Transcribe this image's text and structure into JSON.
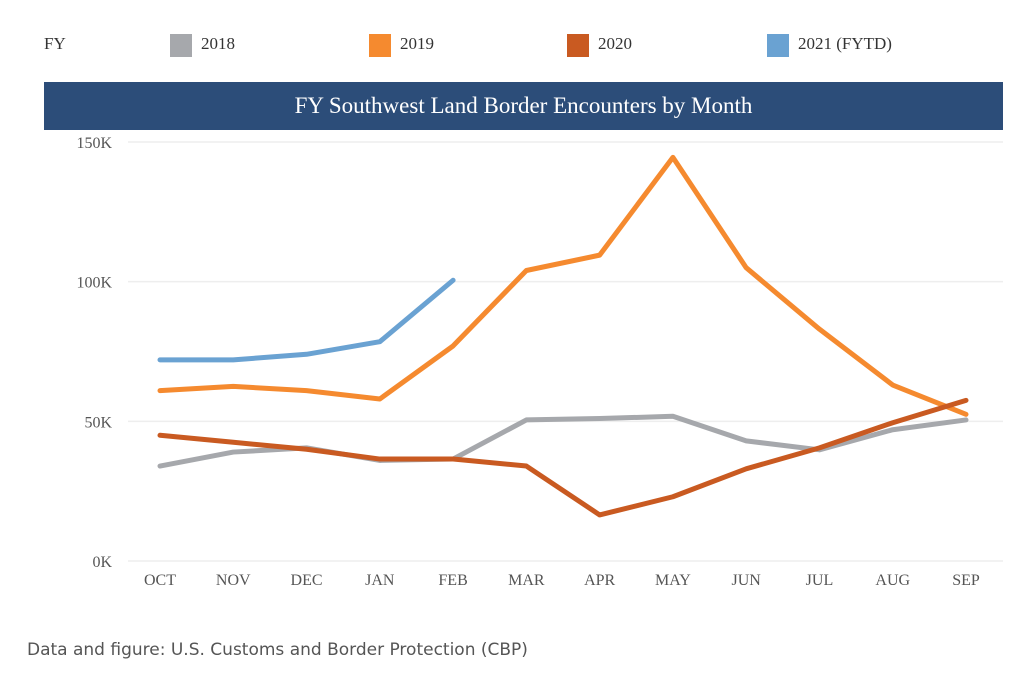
{
  "legend": {
    "title": "FY",
    "items": [
      {
        "label": "2018",
        "color": "#a6a8ac"
      },
      {
        "label": "2019",
        "color": "#f58a2f"
      },
      {
        "label": "2020",
        "color": "#c95a21"
      },
      {
        "label": "2021 (FYTD)",
        "color": "#6aa2d2"
      }
    ]
  },
  "source": "Data and figure: U.S. Customs and Border Protection (CBP)",
  "chart_data": {
    "type": "line",
    "title": "FY Southwest Land Border Encounters by Month",
    "title_bar_color": "#2c4d79",
    "xlabel": "",
    "ylabel": "",
    "categories": [
      "OCT",
      "NOV",
      "DEC",
      "JAN",
      "FEB",
      "MAR",
      "APR",
      "MAY",
      "JUN",
      "JUL",
      "AUG",
      "SEP"
    ],
    "ylim": [
      0,
      150000
    ],
    "yticks": [
      0,
      50000,
      100000,
      150000
    ],
    "ytick_labels": [
      "0K",
      "50K",
      "100K",
      "150K"
    ],
    "grid": true,
    "legend_position": "top",
    "series": [
      {
        "name": "2018",
        "color": "#a6a8ac",
        "values": [
          34000,
          39000,
          40500,
          36000,
          36500,
          50500,
          51000,
          51800,
          43000,
          39800,
          47000,
          50500
        ]
      },
      {
        "name": "2019",
        "color": "#f58a2f",
        "values": [
          61000,
          62500,
          61000,
          58000,
          77000,
          104000,
          109500,
          144500,
          105000,
          83000,
          63000,
          52500
        ]
      },
      {
        "name": "2020",
        "color": "#c95a21",
        "values": [
          45000,
          42500,
          40000,
          36500,
          36500,
          34000,
          16500,
          23000,
          33000,
          40500,
          49500,
          57500
        ]
      },
      {
        "name": "2021 (FYTD)",
        "color": "#6aa2d2",
        "values": [
          72000,
          72000,
          74000,
          78500,
          100500,
          null,
          null,
          null,
          null,
          null,
          null,
          null
        ]
      }
    ]
  }
}
